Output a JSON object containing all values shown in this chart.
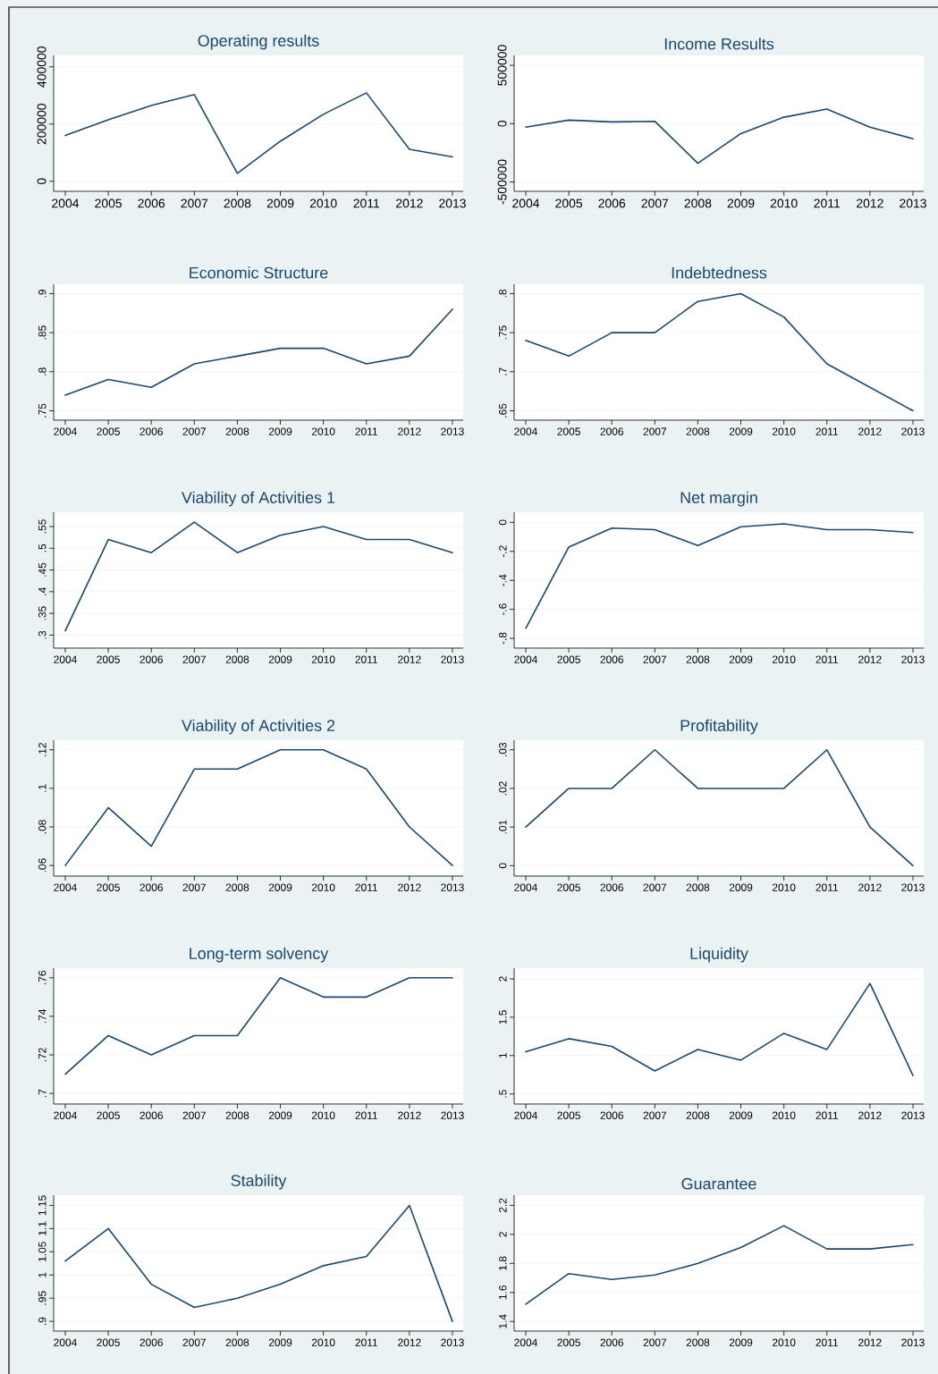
{
  "chart_data": [
    {
      "type": "line",
      "title": "Operating results",
      "categories": [
        "2004",
        "2005",
        "2006",
        "2007",
        "2008",
        "2009",
        "2010",
        "2011",
        "2012",
        "2013"
      ],
      "values": [
        160000,
        215000,
        265000,
        303000,
        28000,
        140000,
        234000,
        309000,
        112000,
        85000
      ],
      "color": "#1a476f",
      "ylim": [
        -35000,
        440000
      ],
      "yticks": [
        0,
        200000,
        400000
      ],
      "grid": "y"
    },
    {
      "type": "line",
      "title": "Income Results",
      "categories": [
        "2004",
        "2005",
        "2006",
        "2007",
        "2008",
        "2009",
        "2010",
        "2011",
        "2012",
        "2013"
      ],
      "values": [
        -30000,
        30000,
        15000,
        20000,
        -340000,
        -85000,
        55000,
        125000,
        -30000,
        -130000
      ],
      "color": "#1a476f",
      "ylim": [
        -580000,
        585000
      ],
      "yticks": [
        -500000,
        0,
        500000
      ],
      "grid": "y"
    },
    {
      "type": "line",
      "title": "Economic Structure",
      "categories": [
        "2004",
        "2005",
        "2006",
        "2007",
        "2008",
        "2009",
        "2010",
        "2011",
        "2012",
        "2013"
      ],
      "values": [
        0.77,
        0.79,
        0.78,
        0.81,
        0.82,
        0.83,
        0.83,
        0.81,
        0.82,
        0.88
      ],
      "color": "#1a476f",
      "ylim": [
        0.738,
        0.912
      ],
      "yticks": [
        {
          "value": 0.75,
          "label": ".75"
        },
        {
          "value": 0.8,
          "label": ".8"
        },
        {
          "value": 0.85,
          "label": ".85"
        },
        {
          "value": 0.9,
          "label": ".9"
        }
      ],
      "grid": "y"
    },
    {
      "type": "line",
      "title": "Indebtedness",
      "categories": [
        "2004",
        "2005",
        "2006",
        "2007",
        "2008",
        "2009",
        "2010",
        "2011",
        "2012",
        "2013"
      ],
      "values": [
        0.74,
        0.72,
        0.75,
        0.75,
        0.79,
        0.8,
        0.77,
        0.71,
        0.68,
        0.65
      ],
      "color": "#1a476f",
      "ylim": [
        0.638,
        0.812
      ],
      "yticks": [
        {
          "value": 0.65,
          "label": ".65"
        },
        {
          "value": 0.7,
          "label": ".7"
        },
        {
          "value": 0.75,
          "label": ".75"
        },
        {
          "value": 0.8,
          "label": ".8"
        }
      ],
      "grid": "y"
    },
    {
      "type": "line",
      "title": "Viability of Activities 1",
      "categories": [
        "2004",
        "2005",
        "2006",
        "2007",
        "2008",
        "2009",
        "2010",
        "2011",
        "2012",
        "2013"
      ],
      "values": [
        0.31,
        0.52,
        0.49,
        0.56,
        0.49,
        0.53,
        0.55,
        0.52,
        0.52,
        0.49
      ],
      "color": "#1a476f",
      "ylim": [
        0.27,
        0.583
      ],
      "yticks": [
        {
          "value": 0.3,
          "label": ".3"
        },
        {
          "value": 0.35,
          "label": ".35"
        },
        {
          "value": 0.4,
          "label": ".4"
        },
        {
          "value": 0.45,
          "label": ".45"
        },
        {
          "value": 0.5,
          "label": ".5"
        },
        {
          "value": 0.55,
          "label": ".55"
        }
      ],
      "grid": "y"
    },
    {
      "type": "line",
      "title": "Net margin",
      "categories": [
        "2004",
        "2005",
        "2006",
        "2007",
        "2008",
        "2009",
        "2010",
        "2011",
        "2012",
        "2013"
      ],
      "values": [
        -0.73,
        -0.17,
        -0.04,
        -0.05,
        -0.16,
        -0.03,
        -0.01,
        -0.05,
        -0.05,
        -0.07
      ],
      "color": "#1a476f",
      "ylim": [
        -0.867,
        0.07
      ],
      "yticks": [
        {
          "value": -0.8,
          "label": "-.8"
        },
        {
          "value": -0.6,
          "label": "-.6"
        },
        {
          "value": -0.4,
          "label": "-.4"
        },
        {
          "value": -0.2,
          "label": "-.2"
        },
        0
      ],
      "grid": "y"
    },
    {
      "type": "line",
      "title": "Viability of Activities 2",
      "categories": [
        "2004",
        "2005",
        "2006",
        "2007",
        "2008",
        "2009",
        "2010",
        "2011",
        "2012",
        "2013"
      ],
      "values": [
        0.06,
        0.09,
        0.07,
        0.11,
        0.11,
        0.12,
        0.12,
        0.11,
        0.08,
        0.06
      ],
      "color": "#1a476f",
      "ylim": [
        0.0545,
        0.125
      ],
      "yticks": [
        {
          "value": 0.06,
          "label": ".06"
        },
        {
          "value": 0.08,
          "label": ".08"
        },
        {
          "value": 0.1,
          "label": ".1"
        },
        {
          "value": 0.12,
          "label": ".12"
        }
      ],
      "grid": "y"
    },
    {
      "type": "line",
      "title": "Profitability",
      "categories": [
        "2004",
        "2005",
        "2006",
        "2007",
        "2008",
        "2009",
        "2010",
        "2011",
        "2012",
        "2013"
      ],
      "values": [
        0.01,
        0.02,
        0.02,
        0.03,
        0.02,
        0.02,
        0.02,
        0.03,
        0.01,
        0
      ],
      "color": "#1a476f",
      "ylim": [
        -0.0027,
        0.0325
      ],
      "yticks": [
        0,
        {
          "value": 0.01,
          "label": ".01"
        },
        {
          "value": 0.02,
          "label": ".02"
        },
        {
          "value": 0.03,
          "label": ".03"
        }
      ],
      "grid": "y"
    },
    {
      "type": "line",
      "title": "Long-term solvency",
      "categories": [
        "2004",
        "2005",
        "2006",
        "2007",
        "2008",
        "2009",
        "2010",
        "2011",
        "2012",
        "2013"
      ],
      "values": [
        0.71,
        0.73,
        0.72,
        0.73,
        0.73,
        0.76,
        0.75,
        0.75,
        0.76,
        0.76
      ],
      "color": "#1a476f",
      "ylim": [
        0.6945,
        0.765
      ],
      "yticks": [
        {
          "value": 0.7,
          "label": ".7"
        },
        {
          "value": 0.72,
          "label": ".72"
        },
        {
          "value": 0.74,
          "label": ".74"
        },
        {
          "value": 0.76,
          "label": ".76"
        }
      ],
      "grid": "y"
    },
    {
      "type": "line",
      "title": "Liquidity",
      "categories": [
        "2004",
        "2005",
        "2006",
        "2007",
        "2008",
        "2009",
        "2010",
        "2011",
        "2012",
        "2013"
      ],
      "values": [
        1.05,
        1.22,
        1.12,
        0.8,
        1.08,
        0.94,
        1.29,
        1.08,
        1.94,
        0.74
      ],
      "color": "#1a476f",
      "ylim": [
        0.368,
        2.14
      ],
      "yticks": [
        {
          "value": 0.5,
          "label": ".5"
        },
        1,
        1.5,
        2
      ],
      "grid": "y"
    },
    {
      "type": "line",
      "title": "Stability",
      "categories": [
        "2004",
        "2005",
        "2006",
        "2007",
        "2008",
        "2009",
        "2010",
        "2011",
        "2012",
        "2013"
      ],
      "values": [
        1.03,
        1.1,
        0.98,
        0.93,
        0.95,
        0.98,
        1.02,
        1.04,
        1.15,
        0.9
      ],
      "color": "#1a476f",
      "ylim": [
        0.879,
        1.172
      ],
      "yticks": [
        {
          "value": 0.9,
          "label": ".9"
        },
        {
          "value": 0.95,
          "label": ".95"
        },
        1,
        1.05,
        1.1,
        1.15
      ],
      "grid": "y"
    },
    {
      "type": "line",
      "title": "Guarantee",
      "categories": [
        "2004",
        "2005",
        "2006",
        "2007",
        "2008",
        "2009",
        "2010",
        "2011",
        "2012",
        "2013"
      ],
      "values": [
        1.52,
        1.73,
        1.69,
        1.72,
        1.8,
        1.91,
        2.06,
        1.9,
        1.9,
        1.93
      ],
      "color": "#1a476f",
      "ylim": [
        1.334,
        2.27
      ],
      "yticks": [
        1.4,
        1.6,
        1.8,
        2,
        2.2
      ],
      "grid": "y"
    }
  ]
}
